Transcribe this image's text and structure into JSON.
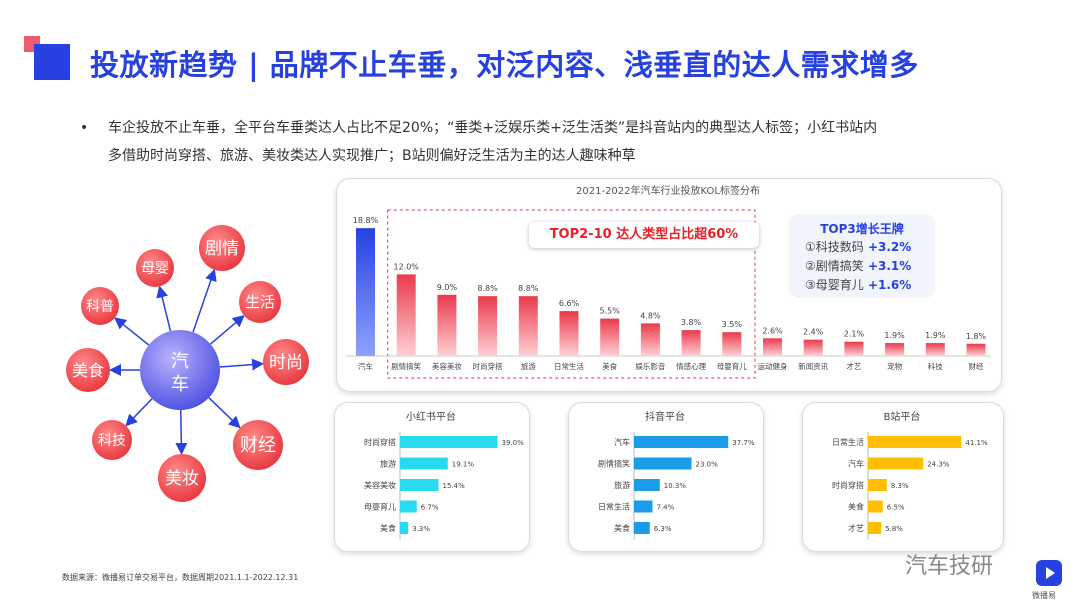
{
  "title": "投放新趋势 | 品牌不止车垂，对泛内容、浅垂直的达人需求增多",
  "bullet_line1": "车企投放不止车垂，全平台车垂类达人占比不足20%；“垂类+泛娱乐类+泛生活类”是抖音站内的典型达人标签；小红书站内",
  "bullet_line2": "多借助时尚穿搭、旅游、美妆类达人实现推广；B站则偏好泛生活为主的达人趣味种草",
  "bullet_marker": "•",
  "mindmap": {
    "center": "汽车",
    "nodes": [
      "剧情",
      "生活",
      "时尚",
      "财经",
      "美妆",
      "科技",
      "美食",
      "科普",
      "母婴"
    ]
  },
  "top3": {
    "title": "TOP3增长王牌",
    "items": [
      {
        "label": "①科技数码",
        "value": "+3.2%"
      },
      {
        "label": "②剧情搞笑",
        "value": "+3.1%"
      },
      {
        "label": "③母婴育儿",
        "value": "+1.6%"
      }
    ]
  },
  "top_badge": "TOP2-10 达人类型占比超60%",
  "source": "数据来源：微播易订单交易平台，数据周期2021.1.1-2022.12.31",
  "brand": "汽车技研",
  "logo_text": "微播易",
  "colors": {
    "accent": "#2741e0",
    "pink": "#f05a6e",
    "cyan": "#29d9f0",
    "blue": "#1a9ce8",
    "gold": "#ffbf00"
  },
  "chart_data": [
    {
      "type": "bar",
      "title": "2021-2022年汽车行业投放KOL标签分布",
      "categories": [
        "汽车",
        "剧情搞笑",
        "美容美妆",
        "时尚穿搭",
        "旅游",
        "日常生活",
        "美食",
        "娱乐影音",
        "情感心理",
        "母婴育儿",
        "运动健身",
        "新闻资讯",
        "才艺",
        "宠物",
        "科技",
        "财经"
      ],
      "values": [
        18.8,
        12.0,
        9.0,
        8.8,
        8.8,
        6.6,
        5.5,
        4.8,
        3.8,
        3.5,
        2.6,
        2.4,
        2.1,
        1.9,
        1.9,
        1.8
      ],
      "labels": [
        "18.8%",
        "12.0%",
        "9.0%",
        "8.8%",
        "8.8%",
        "6.6%",
        "5.5%",
        "4.8%",
        "3.8%",
        "3.5%",
        "2.6%",
        "2.4%",
        "2.1%",
        "1.9%",
        "1.9%",
        "1.8%"
      ],
      "ylim": [
        0,
        20
      ],
      "grid": false
    },
    {
      "type": "bar",
      "orientation": "horizontal",
      "title": "小红书平台",
      "categories": [
        "时尚穿搭",
        "旅游",
        "美容美妆",
        "母婴育儿",
        "美食"
      ],
      "values": [
        39.0,
        19.1,
        15.4,
        6.7,
        3.3
      ],
      "labels": [
        "39.0%",
        "19.1%",
        "15.4%",
        "6.7%",
        "3.3%"
      ],
      "xlim": [
        0,
        40
      ]
    },
    {
      "type": "bar",
      "orientation": "horizontal",
      "title": "抖音平台",
      "categories": [
        "汽车",
        "剧情搞笑",
        "旅游",
        "日常生活",
        "美食"
      ],
      "values": [
        37.7,
        23.0,
        10.3,
        7.4,
        6.3
      ],
      "labels": [
        "37.7%",
        "23.0%",
        "10.3%",
        "7.4%",
        "6.3%"
      ],
      "xlim": [
        0,
        40
      ]
    },
    {
      "type": "bar",
      "orientation": "horizontal",
      "title": "B站平台",
      "categories": [
        "日常生活",
        "汽车",
        "时尚穿搭",
        "美食",
        "才艺"
      ],
      "values": [
        41.1,
        24.3,
        8.3,
        6.5,
        5.8
      ],
      "labels": [
        "41.1%",
        "24.3%",
        "8.3%",
        "6.5%",
        "5.8%"
      ],
      "xlim": [
        0,
        44
      ]
    }
  ]
}
